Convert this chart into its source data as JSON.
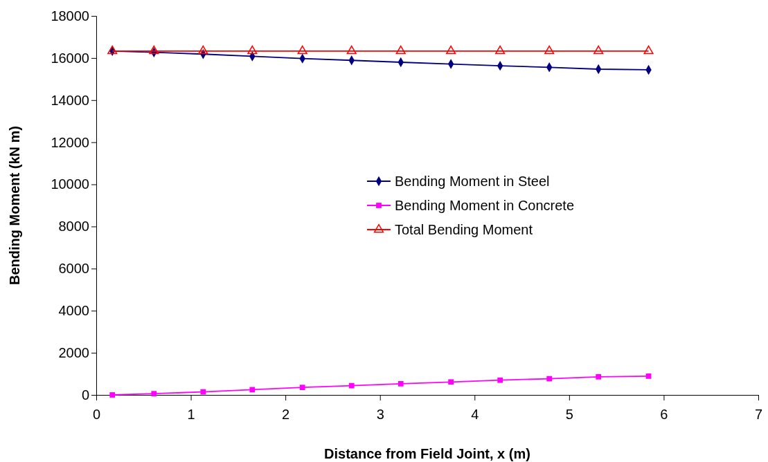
{
  "chart_data": {
    "type": "line",
    "xlabel": "Distance from Field Joint, x (m)",
    "ylabel": "Bending Moment (kN m)",
    "x": [
      0.17,
      0.61,
      1.13,
      1.65,
      2.18,
      2.7,
      3.22,
      3.75,
      4.27,
      4.79,
      5.31,
      5.84
    ],
    "xlim": [
      0,
      7
    ],
    "xticks": [
      0,
      1,
      2,
      3,
      4,
      5,
      6,
      7
    ],
    "ylim": [
      0,
      18000
    ],
    "yticks": [
      0,
      2000,
      4000,
      6000,
      8000,
      10000,
      12000,
      14000,
      16000,
      18000
    ],
    "grid": false,
    "legend": "right",
    "line_style": "solid",
    "series": [
      {
        "name": "Bending Moment in Steel",
        "color": "#000080",
        "marker": "diamond",
        "values": [
          16330,
          16270,
          16185,
          16080,
          15975,
          15890,
          15800,
          15715,
          15630,
          15560,
          15470,
          15440
        ]
      },
      {
        "name": "Bending Moment in Concrete",
        "color": "#ff00ff",
        "marker": "square",
        "values": [
          0,
          60,
          145,
          250,
          355,
          440,
          530,
          615,
          700,
          770,
          860,
          890
        ]
      },
      {
        "name": "Total Bending Moment",
        "color": "#ff0000",
        "marker": "triangle",
        "values": [
          16330,
          16330,
          16330,
          16330,
          16330,
          16330,
          16330,
          16330,
          16330,
          16330,
          16330,
          16330
        ]
      }
    ]
  }
}
